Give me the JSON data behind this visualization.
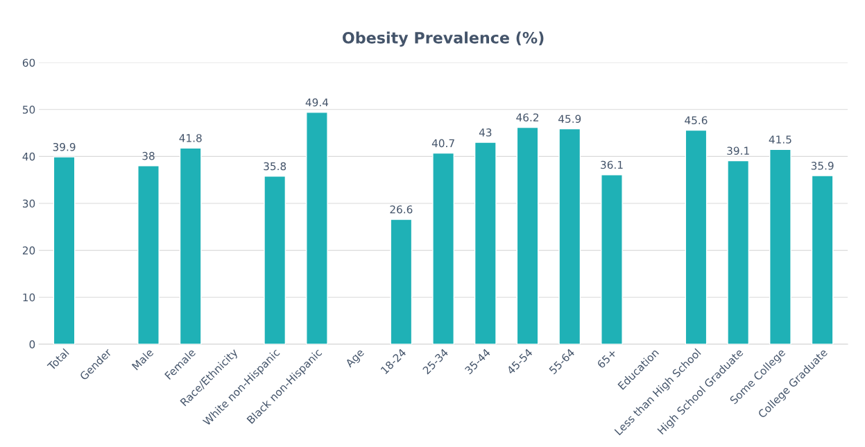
{
  "chart_data": {
    "type": "bar",
    "title": "Obesity Prevalence (%)",
    "categories": [
      "Total",
      "Gender",
      "Male",
      "Female",
      "Race/Ethnicity",
      "White non-Hispanic",
      "Black non-Hispanic",
      "Age",
      "18-24",
      "25-34",
      "35-44",
      "45-54",
      "55-64",
      "65+",
      "Education",
      "Less than High School",
      "High School Graduate",
      "Some College",
      "College Graduate"
    ],
    "values": [
      39.9,
      null,
      38,
      41.8,
      null,
      35.8,
      49.4,
      null,
      26.6,
      40.7,
      43,
      46.2,
      45.9,
      36.1,
      null,
      45.6,
      39.1,
      41.5,
      35.9
    ],
    "color": "#1fb1b6",
    "ylim": [
      0,
      60
    ],
    "yticks": [
      0,
      10,
      20,
      30,
      40,
      50,
      60
    ],
    "grid": "y",
    "data_labels": true,
    "legend": false
  }
}
